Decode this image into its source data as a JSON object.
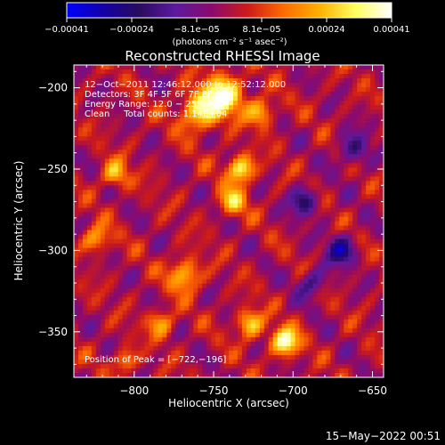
{
  "chart_data": {
    "type": "heatmap",
    "title": "Reconstructed RHESSI Image",
    "xlabel": "Heliocentric X (arcsec)",
    "ylabel": "Heliocentric Y (arcsec)",
    "xlim": [
      -838,
      -643
    ],
    "ylim": [
      -378,
      -186
    ],
    "xticks": [
      -800,
      -750,
      -700,
      -650
    ],
    "yticks": [
      -200,
      -250,
      -300,
      -350
    ],
    "xtick_labels": [
      "−800",
      "−750",
      "−700",
      "−650"
    ],
    "ytick_labels": [
      "−200",
      "−250",
      "−300",
      "−350"
    ],
    "colorbar": {
      "min": -0.00041,
      "max": 0.00041,
      "tick_labels": [
        "−0.00041",
        "−0.00024",
        "−8.1e−05",
        "8.1e−05",
        "0.00024",
        "0.00041"
      ],
      "unit_label": "(photons cm⁻² s⁻¹ asec⁻²)",
      "colors": [
        "#0000ff",
        "#1400a8",
        "#2a0b5e",
        "#5b1a9e",
        "#8a0a6e",
        "#cc1a1a",
        "#ff6a00",
        "#ffb000",
        "#ffff60",
        "#ffffff"
      ]
    },
    "annotations": [
      "12−Oct−2011 12:46:12.000 to 12:52:12.000",
      "Detectors: 3F 4F 5F 6F 7F 8F 9F",
      "Energy Range: 12.0 − 25.0 keV",
      "Clean     Total counts: 1.14E+04"
    ],
    "peak": {
      "label": "Position of Peak = [−722,−196]",
      "x": -722,
      "y": -196
    },
    "sources": [
      {
        "x": -744,
        "y": -205,
        "amplitude": 0.00038,
        "sigma": 9
      },
      {
        "x": -760,
        "y": -215,
        "amplitude": 0.0003,
        "sigma": 8
      },
      {
        "x": -733,
        "y": -250,
        "amplitude": 0.00035,
        "sigma": 6
      },
      {
        "x": -738,
        "y": -270,
        "amplitude": 0.00026,
        "sigma": 6
      },
      {
        "x": -720,
        "y": -215,
        "amplitude": 0.00024,
        "sigma": 6
      },
      {
        "x": -705,
        "y": -356,
        "amplitude": 0.0004,
        "sigma": 6
      },
      {
        "x": -727,
        "y": -345,
        "amplitude": 0.00028,
        "sigma": 6
      },
      {
        "x": -768,
        "y": -315,
        "amplitude": 0.00027,
        "sigma": 7
      },
      {
        "x": -783,
        "y": -345,
        "amplitude": 0.00022,
        "sigma": 6
      },
      {
        "x": -812,
        "y": -253,
        "amplitude": 0.00024,
        "sigma": 6
      },
      {
        "x": -824,
        "y": -293,
        "amplitude": 0.00022,
        "sigma": 6
      },
      {
        "x": -806,
        "y": -368,
        "amplitude": 0.0002,
        "sigma": 5
      },
      {
        "x": -693,
        "y": -270,
        "amplitude": -0.00025,
        "sigma": 6
      },
      {
        "x": -670,
        "y": -300,
        "amplitude": -0.0003,
        "sigma": 6
      },
      {
        "x": -662,
        "y": -238,
        "amplitude": -0.0002,
        "sigma": 7
      },
      {
        "x": -688,
        "y": -320,
        "amplitude": -0.0002,
        "sigma": 6
      }
    ]
  },
  "footer": {
    "timestamp": "15−May−2022 00:51"
  }
}
